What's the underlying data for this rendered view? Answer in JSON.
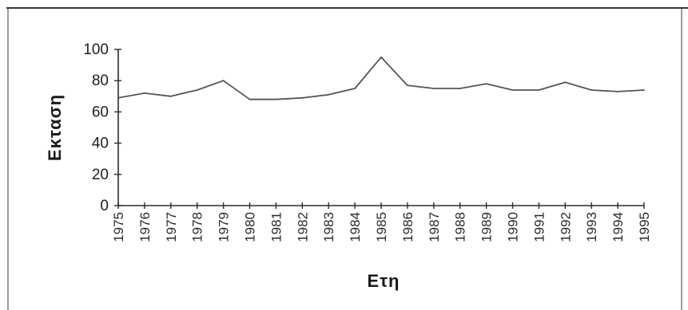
{
  "chart_data": {
    "type": "line",
    "title": "",
    "xlabel": "Ετη",
    "ylabel": "Εκταση",
    "ylim": [
      0,
      100
    ],
    "yticks": [
      "0",
      "20",
      "40",
      "60",
      "80",
      "100"
    ],
    "grid": false,
    "legend": "none",
    "categories": [
      "1975",
      "1976",
      "1977",
      "1978",
      "1979",
      "1980",
      "1981",
      "1982",
      "1983",
      "1984",
      "1985",
      "1986",
      "1987",
      "1988",
      "1989",
      "1990",
      "1991",
      "1992",
      "1993",
      "1994",
      "1995"
    ],
    "series": [
      {
        "values": [
          69,
          72,
          70,
          74,
          80,
          68,
          68,
          69,
          71,
          75,
          95,
          77,
          75,
          75,
          78,
          74,
          74,
          79,
          74,
          73,
          74
        ],
        "color": "#555555"
      }
    ]
  }
}
